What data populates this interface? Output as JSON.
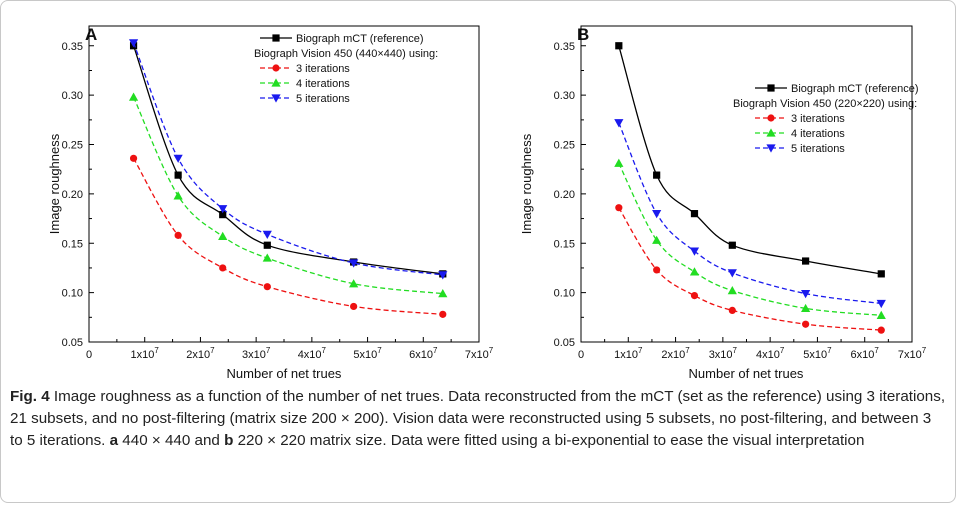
{
  "caption": {
    "label": "Fig. 4",
    "seg1": " Image roughness as a function of the number of net trues. Data reconstructed from the mCT (set as the reference) using 3 iterations, 21 subsets, and no post-filtering (matrix size 200 × 200). Vision data were reconstructed using 5 subsets, no post-filtering, and between 3 to 5 iterations. ",
    "a_label": "a",
    "seg2": " 440 × 440 and ",
    "b_label": "b",
    "seg3": " 220 × 220 matrix size. Data were fitted using a bi-exponential to ease the visual interpretation"
  },
  "colors": {
    "reference": "#000000",
    "iter3": "#ee1111",
    "iter4": "#22dd22",
    "iter5": "#1a1aee"
  },
  "chart_data": [
    {
      "panel": "A",
      "type": "scatter",
      "xlabel": "Number of net trues",
      "ylabel": "Image roughness",
      "xlim": [
        0,
        70000000
      ],
      "ylim": [
        0.05,
        0.37
      ],
      "x_ticks": [
        "0",
        "1x10^7",
        "2x10^7",
        "3x10^7",
        "4x10^7",
        "5x10^7",
        "6x10^7",
        "7x10^7"
      ],
      "y_ticks": [
        "0.05",
        "0.10",
        "0.15",
        "0.20",
        "0.25",
        "0.30",
        "0.35"
      ],
      "legend_position": "top",
      "legend_group_label": "Biograph Vision 450 (440×440) using:",
      "series": [
        {
          "name": "Biograph mCT (reference)",
          "marker": "square",
          "color": "#000000",
          "dash": false,
          "x": [
            8000000,
            16000000,
            24000000,
            32000000,
            47500000,
            63500000
          ],
          "y": [
            0.35,
            0.219,
            0.179,
            0.148,
            0.131,
            0.119
          ]
        },
        {
          "name": "3 iterations",
          "marker": "circle",
          "color": "#ee1111",
          "dash": true,
          "x": [
            8000000,
            16000000,
            24000000,
            32000000,
            47500000,
            63500000
          ],
          "y": [
            0.236,
            0.158,
            0.125,
            0.106,
            0.086,
            0.078
          ]
        },
        {
          "name": "4 iterations",
          "marker": "triangle-up",
          "color": "#22dd22",
          "dash": true,
          "x": [
            8000000,
            16000000,
            24000000,
            32000000,
            47500000,
            63500000
          ],
          "y": [
            0.298,
            0.198,
            0.157,
            0.135,
            0.109,
            0.099
          ]
        },
        {
          "name": "5 iterations",
          "marker": "triangle-down",
          "color": "#1a1aee",
          "dash": true,
          "x": [
            8000000,
            16000000,
            24000000,
            32000000,
            47500000,
            63500000
          ],
          "y": [
            0.353,
            0.236,
            0.185,
            0.159,
            0.13,
            0.118
          ]
        }
      ]
    },
    {
      "panel": "B",
      "type": "scatter",
      "xlabel": "Number of net trues",
      "ylabel": "Image roughness",
      "xlim": [
        0,
        70000000
      ],
      "ylim": [
        0.05,
        0.37
      ],
      "x_ticks": [
        "0",
        "1x10^7",
        "2x10^7",
        "3x10^7",
        "4x10^7",
        "5x10^7",
        "6x10^7",
        "7x10^7"
      ],
      "y_ticks": [
        "0.05",
        "0.10",
        "0.15",
        "0.20",
        "0.25",
        "0.30",
        "0.35"
      ],
      "legend_position": "top-right",
      "legend_group_label": "Biograph Vision 450 (220×220) using:",
      "series": [
        {
          "name": "Biograph mCT (reference)",
          "marker": "square",
          "color": "#000000",
          "dash": false,
          "x": [
            8000000,
            16000000,
            24000000,
            32000000,
            47500000,
            63500000
          ],
          "y": [
            0.35,
            0.219,
            0.18,
            0.148,
            0.132,
            0.119
          ]
        },
        {
          "name": "3 iterations",
          "marker": "circle",
          "color": "#ee1111",
          "dash": true,
          "x": [
            8000000,
            16000000,
            24000000,
            32000000,
            47500000,
            63500000
          ],
          "y": [
            0.186,
            0.123,
            0.097,
            0.082,
            0.068,
            0.062
          ]
        },
        {
          "name": "4 iterations",
          "marker": "triangle-up",
          "color": "#22dd22",
          "dash": true,
          "x": [
            8000000,
            16000000,
            24000000,
            32000000,
            47500000,
            63500000
          ],
          "y": [
            0.231,
            0.153,
            0.121,
            0.102,
            0.084,
            0.077
          ]
        },
        {
          "name": "5 iterations",
          "marker": "triangle-down",
          "color": "#1a1aee",
          "dash": true,
          "x": [
            8000000,
            16000000,
            24000000,
            32000000,
            47500000,
            63500000
          ],
          "y": [
            0.272,
            0.18,
            0.142,
            0.12,
            0.099,
            0.089
          ]
        }
      ]
    }
  ]
}
